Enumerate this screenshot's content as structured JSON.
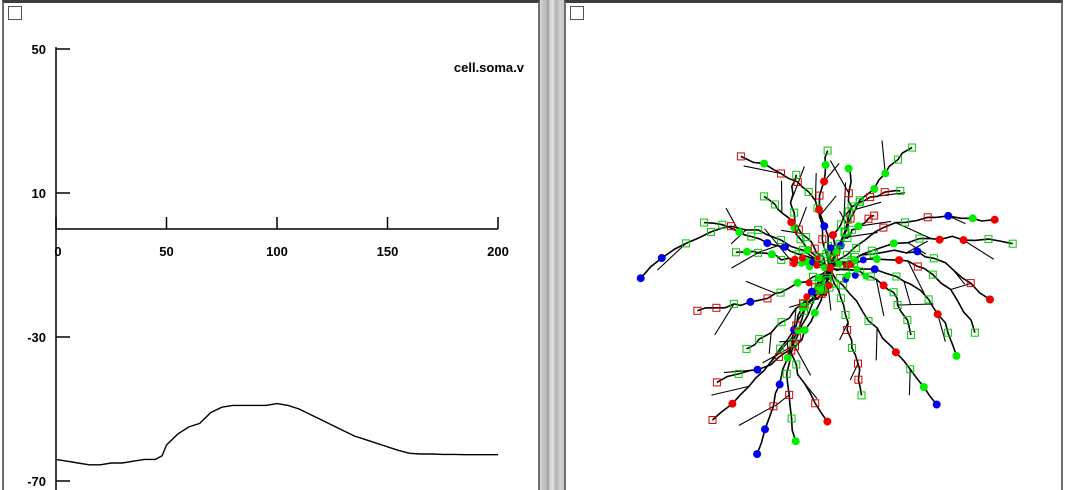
{
  "graph_window": {
    "chart_data": {
      "type": "line",
      "series": [
        {
          "name": "cell.soma.v",
          "x": [
            0,
            5,
            10,
            15,
            20,
            25,
            30,
            35,
            40,
            45,
            48,
            50,
            55,
            60,
            65,
            70,
            75,
            80,
            85,
            90,
            95,
            100,
            105,
            110,
            115,
            120,
            125,
            130,
            135,
            140,
            145,
            150,
            155,
            160,
            165,
            170,
            175,
            180,
            185,
            190,
            200
          ],
          "y": [
            -64,
            -64.5,
            -65,
            -65.5,
            -65.5,
            -65,
            -65,
            -64.5,
            -64,
            -64,
            -63,
            -60,
            -57,
            -55,
            -54,
            -51,
            -49.5,
            -49,
            -49,
            -49,
            -49,
            -48.5,
            -49,
            -50,
            -51.5,
            -53,
            -54.5,
            -56,
            -57.5,
            -58.5,
            -59.5,
            -60.5,
            -61.5,
            -62.3,
            -62.5,
            -62.5,
            -62.6,
            -62.6,
            -62.7,
            -62.7,
            -62.7
          ]
        }
      ],
      "x_ticks": [
        0,
        50,
        100,
        150,
        200
      ],
      "y_ticks": [
        50,
        10,
        -30,
        -70
      ],
      "xlim": [
        0,
        200
      ],
      "ylim": [
        -70,
        50
      ],
      "x_axis_at_y": 0,
      "line_color": "#000000",
      "legend_placement": "top-right"
    }
  },
  "shape_window": {
    "colors": {
      "dendrite": "#000000",
      "green_marker": "#00ee00",
      "blue_marker": "#0000ee",
      "red_marker": "#ee0000",
      "square_red": "#dd0000",
      "square_green": "#00cc00"
    }
  }
}
